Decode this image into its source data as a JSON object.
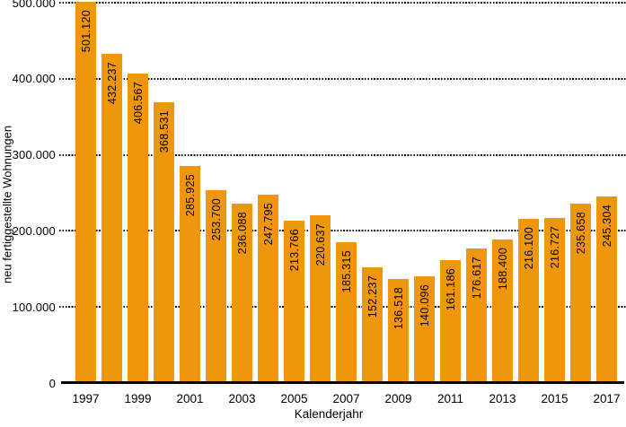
{
  "chart_data": {
    "type": "bar",
    "title": "",
    "xlabel": "Kalenderjahr",
    "ylabel": "neu fertiggestellte Wohnungen",
    "categories": [
      1997,
      1998,
      1999,
      2000,
      2001,
      2002,
      2003,
      2004,
      2005,
      2006,
      2007,
      2008,
      2009,
      2010,
      2011,
      2012,
      2013,
      2014,
      2015,
      2016,
      2017
    ],
    "values": [
      501120,
      432237,
      406567,
      368531,
      285925,
      253700,
      236088,
      247795,
      213766,
      220637,
      185315,
      152237,
      136518,
      140096,
      161186,
      176617,
      188400,
      216100,
      216727,
      235658,
      245304
    ],
    "bar_labels": [
      "501.120",
      "432.237",
      "406.567",
      "368.531",
      "285.925",
      "253.700",
      "236.088",
      "247.795",
      "213.766",
      "220.637",
      "185.315",
      "152.237",
      "136.518",
      "140.096",
      "161.186",
      "176.617",
      "188.400",
      "216.100",
      "216.727",
      "235.658",
      "245.304"
    ],
    "x_tick_labels": [
      "1997",
      "1999",
      "2001",
      "2003",
      "2005",
      "2007",
      "2009",
      "2011",
      "2013",
      "2015",
      "2017"
    ],
    "y_tick_labels": [
      "0",
      "100.000",
      "200.000",
      "300.000",
      "400.000",
      "500.000"
    ],
    "y_tick_values": [
      0,
      100000,
      200000,
      300000,
      400000,
      500000
    ],
    "ylim": [
      0,
      500000
    ],
    "bar_color": "#F0960C",
    "text_color": "#000000",
    "grid": "horizontal-dotted",
    "legend": "none"
  }
}
